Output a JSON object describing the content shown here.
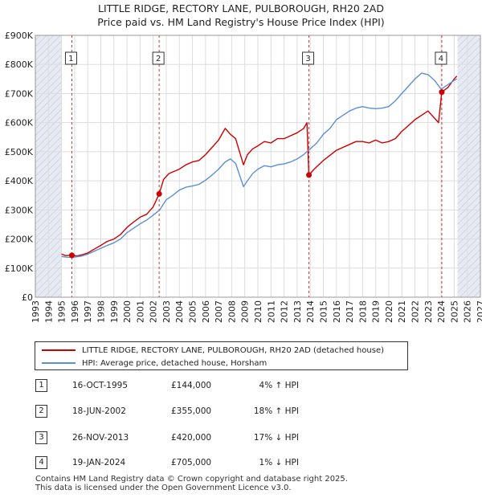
{
  "title_line1": "LITTLE RIDGE, RECTORY LANE, PULBOROUGH, RH20 2AD",
  "title_line2": "Price paid vs. HM Land Registry's House Price Index (HPI)",
  "colors": {
    "property": "#cc0000",
    "hpi": "#5b8fd4",
    "grid": "#dddddd",
    "shade": "#e6eaf3",
    "hatch": "#bbbbbb"
  },
  "chart_data": {
    "type": "line",
    "xlim": [
      1993,
      2027
    ],
    "ylim": [
      0,
      900000
    ],
    "y_ticks": [
      {
        "value": 0,
        "label": "£0"
      },
      {
        "value": 100000,
        "label": "£100K"
      },
      {
        "value": 200000,
        "label": "£200K"
      },
      {
        "value": 300000,
        "label": "£300K"
      },
      {
        "value": 400000,
        "label": "£400K"
      },
      {
        "value": 500000,
        "label": "£500K"
      },
      {
        "value": 600000,
        "label": "£600K"
      },
      {
        "value": 700000,
        "label": "£700K"
      },
      {
        "value": 800000,
        "label": "£800K"
      },
      {
        "value": 900000,
        "label": "£900K"
      }
    ],
    "x_ticks": [
      "1993",
      "1994",
      "1995",
      "1996",
      "1997",
      "1998",
      "1999",
      "2000",
      "2001",
      "2002",
      "2003",
      "2004",
      "2005",
      "2006",
      "2007",
      "2008",
      "2009",
      "2010",
      "2011",
      "2012",
      "2013",
      "2014",
      "2015",
      "2016",
      "2017",
      "2018",
      "2019",
      "2020",
      "2021",
      "2022",
      "2023",
      "2024",
      "2025",
      "2026",
      "2027"
    ],
    "shaded_ranges": [
      [
        1993,
        1995.0
      ],
      [
        2025.25,
        2027
      ]
    ],
    "series": [
      {
        "name": "LITTLE RIDGE, RECTORY LANE, PULBOROUGH, RH20 2AD (detached house)",
        "key": "property",
        "points": [
          [
            1995.0,
            148000
          ],
          [
            1995.3,
            143000
          ],
          [
            1995.79,
            144000
          ],
          [
            1996.2,
            142000
          ],
          [
            1996.6,
            146000
          ],
          [
            1997.0,
            152000
          ],
          [
            1997.5,
            165000
          ],
          [
            1998.0,
            178000
          ],
          [
            1998.5,
            192000
          ],
          [
            1999.0,
            200000
          ],
          [
            1999.5,
            215000
          ],
          [
            2000.0,
            240000
          ],
          [
            2000.5,
            258000
          ],
          [
            2001.0,
            275000
          ],
          [
            2001.5,
            285000
          ],
          [
            2002.0,
            310000
          ],
          [
            2002.46,
            355000
          ],
          [
            2002.8,
            405000
          ],
          [
            2003.2,
            425000
          ],
          [
            2004.0,
            440000
          ],
          [
            2004.5,
            455000
          ],
          [
            2005.0,
            465000
          ],
          [
            2005.5,
            470000
          ],
          [
            2006.0,
            490000
          ],
          [
            2006.5,
            515000
          ],
          [
            2007.0,
            540000
          ],
          [
            2007.5,
            580000
          ],
          [
            2007.9,
            560000
          ],
          [
            2008.3,
            545000
          ],
          [
            2008.6,
            500000
          ],
          [
            2008.9,
            455000
          ],
          [
            2009.2,
            490000
          ],
          [
            2009.6,
            510000
          ],
          [
            2010.0,
            520000
          ],
          [
            2010.5,
            535000
          ],
          [
            2011.0,
            530000
          ],
          [
            2011.5,
            545000
          ],
          [
            2012.0,
            545000
          ],
          [
            2012.5,
            555000
          ],
          [
            2013.0,
            565000
          ],
          [
            2013.5,
            580000
          ],
          [
            2013.75,
            600000
          ],
          [
            2013.9,
            420000
          ],
          [
            2014.3,
            440000
          ],
          [
            2015.0,
            470000
          ],
          [
            2016.0,
            505000
          ],
          [
            2017.0,
            525000
          ],
          [
            2017.5,
            535000
          ],
          [
            2018.0,
            535000
          ],
          [
            2018.5,
            530000
          ],
          [
            2019.0,
            540000
          ],
          [
            2019.5,
            530000
          ],
          [
            2020.0,
            535000
          ],
          [
            2020.5,
            545000
          ],
          [
            2021.0,
            570000
          ],
          [
            2021.5,
            590000
          ],
          [
            2022.0,
            610000
          ],
          [
            2022.5,
            625000
          ],
          [
            2023.0,
            640000
          ],
          [
            2023.4,
            620000
          ],
          [
            2023.8,
            600000
          ],
          [
            2024.05,
            705000
          ],
          [
            2024.5,
            720000
          ],
          [
            2025.0,
            750000
          ],
          [
            2025.2,
            760000
          ]
        ]
      },
      {
        "name": "HPI: Average price, detached house, Horsham",
        "key": "hpi",
        "points": [
          [
            1995.0,
            140000
          ],
          [
            1995.5,
            137000
          ],
          [
            1996.0,
            138000
          ],
          [
            1996.5,
            141000
          ],
          [
            1997.0,
            148000
          ],
          [
            1997.5,
            158000
          ],
          [
            1998.0,
            168000
          ],
          [
            1998.5,
            178000
          ],
          [
            1999.0,
            187000
          ],
          [
            1999.5,
            200000
          ],
          [
            2000.0,
            222000
          ],
          [
            2000.5,
            237000
          ],
          [
            2001.0,
            252000
          ],
          [
            2001.5,
            265000
          ],
          [
            2002.0,
            282000
          ],
          [
            2002.5,
            300000
          ],
          [
            2003.0,
            335000
          ],
          [
            2003.5,
            350000
          ],
          [
            2004.0,
            368000
          ],
          [
            2004.5,
            378000
          ],
          [
            2005.0,
            382000
          ],
          [
            2005.5,
            388000
          ],
          [
            2006.0,
            402000
          ],
          [
            2006.5,
            420000
          ],
          [
            2007.0,
            440000
          ],
          [
            2007.5,
            465000
          ],
          [
            2007.9,
            475000
          ],
          [
            2008.3,
            460000
          ],
          [
            2008.6,
            420000
          ],
          [
            2008.9,
            380000
          ],
          [
            2009.2,
            400000
          ],
          [
            2009.6,
            425000
          ],
          [
            2010.0,
            440000
          ],
          [
            2010.5,
            452000
          ],
          [
            2011.0,
            448000
          ],
          [
            2011.5,
            455000
          ],
          [
            2012.0,
            458000
          ],
          [
            2012.5,
            465000
          ],
          [
            2013.0,
            475000
          ],
          [
            2013.5,
            490000
          ],
          [
            2014.0,
            510000
          ],
          [
            2014.5,
            530000
          ],
          [
            2015.0,
            560000
          ],
          [
            2015.5,
            580000
          ],
          [
            2016.0,
            610000
          ],
          [
            2016.5,
            625000
          ],
          [
            2017.0,
            640000
          ],
          [
            2017.5,
            650000
          ],
          [
            2018.0,
            655000
          ],
          [
            2018.5,
            650000
          ],
          [
            2019.0,
            648000
          ],
          [
            2019.5,
            650000
          ],
          [
            2020.0,
            655000
          ],
          [
            2020.5,
            675000
          ],
          [
            2021.0,
            700000
          ],
          [
            2021.5,
            725000
          ],
          [
            2022.0,
            750000
          ],
          [
            2022.5,
            770000
          ],
          [
            2023.0,
            765000
          ],
          [
            2023.5,
            745000
          ],
          [
            2024.0,
            715000
          ],
          [
            2024.5,
            730000
          ],
          [
            2025.0,
            745000
          ],
          [
            2025.2,
            750000
          ]
        ]
      }
    ],
    "sale_markers": [
      {
        "label": "1",
        "x": 1995.79,
        "y": 144000
      },
      {
        "label": "2",
        "x": 2002.46,
        "y": 355000
      },
      {
        "label": "3",
        "x": 2013.9,
        "y": 420000
      },
      {
        "label": "4",
        "x": 2024.05,
        "y": 705000
      }
    ]
  },
  "legend": {
    "property_label": "LITTLE RIDGE, RECTORY LANE, PULBOROUGH, RH20 2AD (detached house)",
    "hpi_label": "HPI: Average price, detached house, Horsham"
  },
  "sales": [
    {
      "num": "1",
      "date": "16-OCT-1995",
      "price": "£144,000",
      "hpi": "4% ↑ HPI"
    },
    {
      "num": "2",
      "date": "18-JUN-2002",
      "price": "£355,000",
      "hpi": "18% ↑ HPI"
    },
    {
      "num": "3",
      "date": "26-NOV-2013",
      "price": "£420,000",
      "hpi": "17% ↓ HPI"
    },
    {
      "num": "4",
      "date": "19-JAN-2024",
      "price": "£705,000",
      "hpi": "1% ↓ HPI"
    }
  ],
  "footer_line1": "Contains HM Land Registry data © Crown copyright and database right 2025.",
  "footer_line2": "This data is licensed under the Open Government Licence v3.0."
}
